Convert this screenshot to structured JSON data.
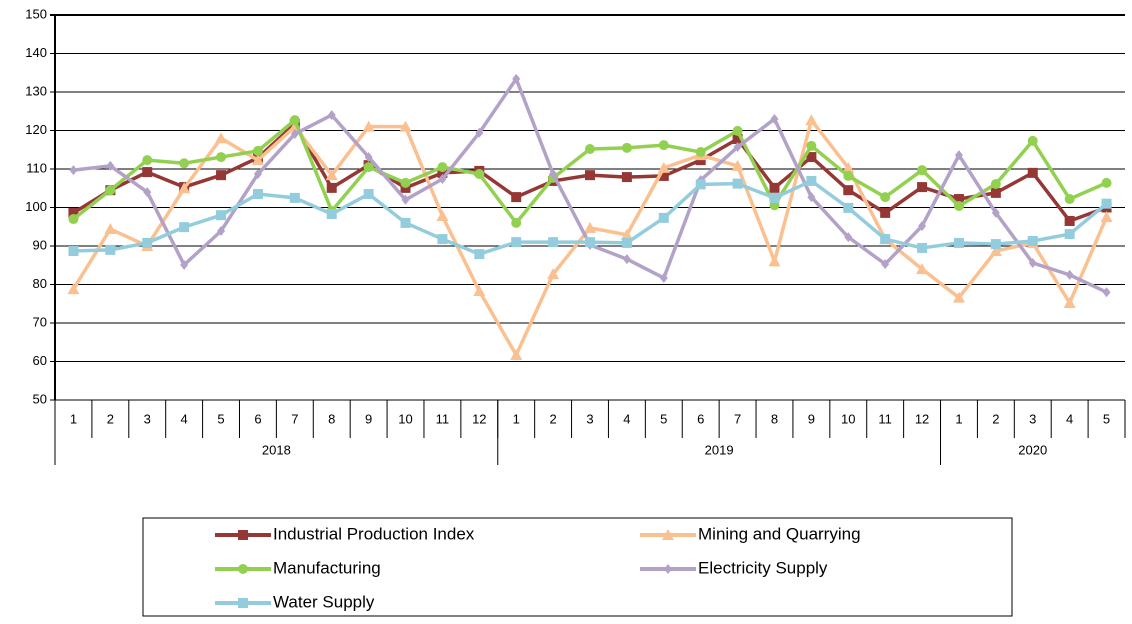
{
  "chart_data": {
    "type": "line",
    "category_groups": [
      {
        "label": "2018",
        "categories": [
          "1",
          "2",
          "3",
          "4",
          "5",
          "6",
          "7",
          "8",
          "9",
          "10",
          "11",
          "12"
        ]
      },
      {
        "label": "2019",
        "categories": [
          "1",
          "2",
          "3",
          "4",
          "5",
          "6",
          "7",
          "8",
          "9",
          "10",
          "11",
          "12"
        ]
      },
      {
        "label": "2020",
        "categories": [
          "1",
          "2",
          "3",
          "4",
          "5"
        ]
      }
    ],
    "ylim": [
      50,
      150
    ],
    "yticks": [
      50,
      60,
      70,
      80,
      90,
      100,
      110,
      120,
      130,
      140,
      150
    ],
    "grid": true,
    "legend": "bottom",
    "series": [
      {
        "name": "Industrial Production Index",
        "color": "#953735",
        "marker": "square",
        "values": [
          98.6,
          104.5,
          109.2,
          105.3,
          108.4,
          112.9,
          121.7,
          105.1,
          111,
          105.1,
          109,
          109.5,
          102.7,
          106.9,
          108.4,
          107.9,
          108.2,
          112.3,
          117.8,
          105.1,
          113.1,
          104.5,
          98.6,
          105.3,
          102.2,
          103.8,
          109,
          96.5,
          100
        ]
      },
      {
        "name": "Mining and Quarrying",
        "color": "#fac090",
        "marker": "triangle",
        "values": [
          78.8,
          94.4,
          90,
          105,
          118,
          112.3,
          121,
          108.4,
          121,
          121,
          97.8,
          78.3,
          61.7,
          82.7,
          94.7,
          92.9,
          110.3,
          113.6,
          110.8,
          86,
          122.7,
          110.3,
          91.8,
          84,
          76.6,
          88.7,
          90.8,
          75.2,
          97.5
        ]
      },
      {
        "name": "Manufacturing",
        "color": "#92d050",
        "marker": "circle",
        "values": [
          97,
          104.5,
          112.3,
          111.5,
          113.1,
          114.7,
          122.7,
          99.1,
          110.5,
          106.4,
          110.5,
          108.7,
          96,
          107.7,
          115.2,
          115.5,
          116.2,
          114.4,
          119.9,
          100.6,
          116,
          108.2,
          102.7,
          109.7,
          100.4,
          106.1,
          117.3,
          102.2,
          106.4
        ]
      },
      {
        "name": "Electricity Supply",
        "color": "#b3a2c7",
        "marker": "diamond",
        "values": [
          109.7,
          110.8,
          104,
          85.1,
          93.9,
          108.7,
          119.1,
          124,
          113.1,
          102,
          107.4,
          119.4,
          133.4,
          108.7,
          90.3,
          86.6,
          81.7,
          107.1,
          115.7,
          123,
          102.7,
          92.3,
          85.3,
          95.2,
          113.6,
          98.6,
          85.6,
          82.5,
          78
        ]
      },
      {
        "name": "Water Supply",
        "color": "#93cddd",
        "marker": "square",
        "values": [
          88.7,
          89,
          90.8,
          94.9,
          98,
          103.5,
          102.5,
          98.3,
          103.5,
          96,
          91.8,
          87.9,
          91,
          91,
          91,
          90.8,
          97.3,
          106,
          106.2,
          102.5,
          106.9,
          99.9,
          91.8,
          89.5,
          90.8,
          90.5,
          91.3,
          93.1,
          101
        ]
      }
    ]
  }
}
